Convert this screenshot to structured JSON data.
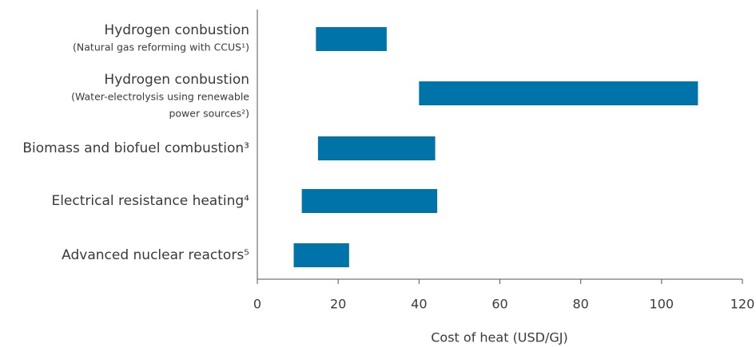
{
  "chart_data": {
    "type": "range-bar",
    "categories": [
      [
        "Hydrogen conbustion",
        "(Natural gas reforming with CCUS¹)"
      ],
      [
        "Hydrogen conbustion",
        "(Water-electrolysis using renewable",
        "power sources²)"
      ],
      [
        "Biomass and biofuel combustion³"
      ],
      [
        "Electrical resistance heating⁴"
      ],
      [
        "Advanced nuclear reactors⁵"
      ]
    ],
    "starts": [
      14.5,
      40,
      15,
      11,
      9
    ],
    "ends": [
      32,
      109,
      44,
      44.5,
      22.7
    ],
    "color": "#0073a8",
    "xlabel": "Cost of heat (USD/GJ)",
    "xlim": [
      0,
      120
    ],
    "xticks": [
      0,
      20,
      40,
      60,
      80,
      100,
      120
    ]
  }
}
